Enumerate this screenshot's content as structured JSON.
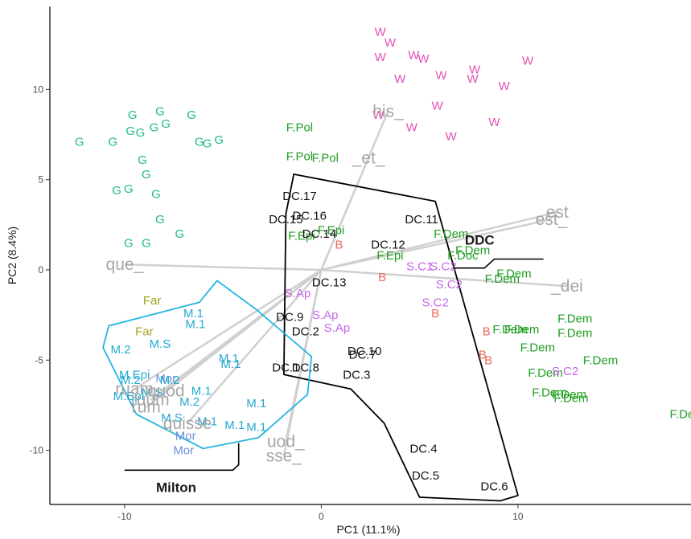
{
  "chart_data": {
    "type": "scatter",
    "xlabel": "PC1 (11.1%)",
    "ylabel": "PC2 (8.4%)",
    "xlim": [
      -13.8,
      18.8
    ],
    "ylim": [
      -13,
      14.6
    ],
    "xticks": [
      -10,
      0,
      10
    ],
    "yticks": [
      -10,
      -5,
      0,
      5,
      10
    ],
    "grid": false,
    "colors": {
      "G": "#1fb98e",
      "W": "#e64fb5",
      "Far": "#a3a31f",
      "M": "#23a9cf",
      "Mor": "#6b8fe0",
      "DC": "#111111",
      "F": "#1f9e1f",
      "B": "#ea6b5e",
      "S": "#c467e8",
      "var": "#a6a6a6",
      "hull_milton": "#23b5e0",
      "hull_ddc": "#000000"
    },
    "points": [
      {
        "label": "G",
        "x": -12.3,
        "y": 7.1,
        "group": "G"
      },
      {
        "label": "G",
        "x": -10.6,
        "y": 7.1,
        "group": "G"
      },
      {
        "label": "G",
        "x": -9.6,
        "y": 8.6,
        "group": "G"
      },
      {
        "label": "G",
        "x": -8.2,
        "y": 8.8,
        "group": "G"
      },
      {
        "label": "G",
        "x": -6.6,
        "y": 8.6,
        "group": "G"
      },
      {
        "label": "G",
        "x": -9.7,
        "y": 7.7,
        "group": "G"
      },
      {
        "label": "G",
        "x": -9.2,
        "y": 7.6,
        "group": "G"
      },
      {
        "label": "G",
        "x": -8.5,
        "y": 7.9,
        "group": "G"
      },
      {
        "label": "G",
        "x": -7.9,
        "y": 8.1,
        "group": "G"
      },
      {
        "label": "G",
        "x": -6.2,
        "y": 7.1,
        "group": "G"
      },
      {
        "label": "G",
        "x": -5.8,
        "y": 7.0,
        "group": "G"
      },
      {
        "label": "G",
        "x": -5.2,
        "y": 7.2,
        "group": "G"
      },
      {
        "label": "G",
        "x": -9.1,
        "y": 6.1,
        "group": "G"
      },
      {
        "label": "G",
        "x": -8.9,
        "y": 5.3,
        "group": "G"
      },
      {
        "label": "G",
        "x": -10.4,
        "y": 4.4,
        "group": "G"
      },
      {
        "label": "G",
        "x": -9.8,
        "y": 4.5,
        "group": "G"
      },
      {
        "label": "G",
        "x": -8.4,
        "y": 4.2,
        "group": "G"
      },
      {
        "label": "G",
        "x": -8.2,
        "y": 2.8,
        "group": "G"
      },
      {
        "label": "G",
        "x": -7.2,
        "y": 2.0,
        "group": "G"
      },
      {
        "label": "G",
        "x": -9.8,
        "y": 1.5,
        "group": "G"
      },
      {
        "label": "G",
        "x": -8.9,
        "y": 1.5,
        "group": "G"
      },
      {
        "label": "W",
        "x": 3.0,
        "y": 13.2,
        "group": "W"
      },
      {
        "label": "W",
        "x": 3.5,
        "y": 12.6,
        "group": "W"
      },
      {
        "label": "W",
        "x": 3.0,
        "y": 11.8,
        "group": "W"
      },
      {
        "label": "W",
        "x": 4.7,
        "y": 11.9,
        "group": "W"
      },
      {
        "label": "W",
        "x": 5.2,
        "y": 11.7,
        "group": "W"
      },
      {
        "label": "W",
        "x": 7.8,
        "y": 11.1,
        "group": "W"
      },
      {
        "label": "W",
        "x": 10.5,
        "y": 11.6,
        "group": "W"
      },
      {
        "label": "W",
        "x": 4.0,
        "y": 10.6,
        "group": "W"
      },
      {
        "label": "W",
        "x": 6.1,
        "y": 10.8,
        "group": "W"
      },
      {
        "label": "W",
        "x": 7.7,
        "y": 10.6,
        "group": "W"
      },
      {
        "label": "W",
        "x": 9.3,
        "y": 10.2,
        "group": "W"
      },
      {
        "label": "W",
        "x": 5.9,
        "y": 9.1,
        "group": "W"
      },
      {
        "label": "W",
        "x": 2.9,
        "y": 8.6,
        "group": "W"
      },
      {
        "label": "W",
        "x": 4.6,
        "y": 7.9,
        "group": "W"
      },
      {
        "label": "W",
        "x": 8.8,
        "y": 8.2,
        "group": "W"
      },
      {
        "label": "W",
        "x": 6.6,
        "y": 7.4,
        "group": "W"
      },
      {
        "label": "F.Pol",
        "x": -1.1,
        "y": 7.9,
        "group": "F"
      },
      {
        "label": "F.Pol",
        "x": -1.1,
        "y": 6.3,
        "group": "F"
      },
      {
        "label": "F.Pol",
        "x": 0.2,
        "y": 6.2,
        "group": "F"
      },
      {
        "label": "F.Epi",
        "x": -1.0,
        "y": 1.9,
        "group": "F"
      },
      {
        "label": "F.Epi",
        "x": 0.5,
        "y": 2.2,
        "group": "F"
      },
      {
        "label": "F.Epi",
        "x": 3.5,
        "y": 0.8,
        "group": "F"
      },
      {
        "label": "F.Dem",
        "x": 6.6,
        "y": 2.0,
        "group": "F"
      },
      {
        "label": "F.Dem",
        "x": 7.7,
        "y": 1.1,
        "group": "F"
      },
      {
        "label": "F.Doc",
        "x": 7.2,
        "y": 0.8,
        "group": "F"
      },
      {
        "label": "F.Dem",
        "x": 9.8,
        "y": -0.2,
        "group": "F"
      },
      {
        "label": "F.Dem",
        "x": 9.2,
        "y": -0.5,
        "group": "F"
      },
      {
        "label": "F.Dem",
        "x": 12.9,
        "y": -2.7,
        "group": "F"
      },
      {
        "label": "F.Dem",
        "x": 9.6,
        "y": -3.3,
        "group": "F"
      },
      {
        "label": "F.Dem",
        "x": 10.2,
        "y": -3.3,
        "group": "F"
      },
      {
        "label": "F.Dem",
        "x": 12.9,
        "y": -3.5,
        "group": "F"
      },
      {
        "label": "F.Dem",
        "x": 11.0,
        "y": -4.3,
        "group": "F"
      },
      {
        "label": "F.Dem",
        "x": 14.2,
        "y": -5.0,
        "group": "F"
      },
      {
        "label": "F.Dem",
        "x": 11.4,
        "y": -5.7,
        "group": "F"
      },
      {
        "label": "F.Dem",
        "x": 11.6,
        "y": -6.8,
        "group": "F"
      },
      {
        "label": "F.Dem",
        "x": 12.6,
        "y": -6.9,
        "group": "F"
      },
      {
        "label": "F.Dem",
        "x": 12.7,
        "y": -7.1,
        "group": "F"
      },
      {
        "label": "F.Dem",
        "x": 18.6,
        "y": -8.0,
        "group": "F"
      },
      {
        "label": "S.C1",
        "x": 5.0,
        "y": 0.2,
        "group": "S"
      },
      {
        "label": "S.C2",
        "x": 6.2,
        "y": 0.2,
        "group": "S"
      },
      {
        "label": "S.C2",
        "x": 6.5,
        "y": -0.8,
        "group": "S"
      },
      {
        "label": "S.C2",
        "x": 5.8,
        "y": -1.8,
        "group": "S"
      },
      {
        "label": "S.C2",
        "x": 12.4,
        "y": -5.6,
        "group": "S"
      },
      {
        "label": "S.Ap",
        "x": -1.2,
        "y": -1.3,
        "group": "S"
      },
      {
        "label": "S.Ap",
        "x": 0.2,
        "y": -2.5,
        "group": "S"
      },
      {
        "label": "S.Ap",
        "x": 0.8,
        "y": -3.2,
        "group": "S"
      },
      {
        "label": "B",
        "x": 0.9,
        "y": 1.4,
        "group": "B"
      },
      {
        "label": "B",
        "x": 3.1,
        "y": -0.4,
        "group": "B"
      },
      {
        "label": "B",
        "x": 5.8,
        "y": -2.4,
        "group": "B"
      },
      {
        "label": "B",
        "x": 8.4,
        "y": -3.4,
        "group": "B"
      },
      {
        "label": "B",
        "x": 8.2,
        "y": -4.7,
        "group": "B"
      },
      {
        "label": "B",
        "x": 8.5,
        "y": -5.0,
        "group": "B"
      },
      {
        "label": "DC.17",
        "x": -1.1,
        "y": 4.1,
        "group": "DC"
      },
      {
        "label": "DC.16",
        "x": -0.6,
        "y": 3.0,
        "group": "DC"
      },
      {
        "label": "DC.15",
        "x": -1.8,
        "y": 2.8,
        "group": "DC"
      },
      {
        "label": "DC.14",
        "x": -0.1,
        "y": 2.0,
        "group": "DC"
      },
      {
        "label": "DC.11",
        "x": 5.1,
        "y": 2.8,
        "group": "DC"
      },
      {
        "label": "DC.12",
        "x": 3.4,
        "y": 1.4,
        "group": "DC"
      },
      {
        "label": "DC.13",
        "x": 0.4,
        "y": -0.7,
        "group": "DC"
      },
      {
        "label": "DC.9",
        "x": -1.6,
        "y": -2.6,
        "group": "DC"
      },
      {
        "label": "DC.2",
        "x": -0.8,
        "y": -3.4,
        "group": "DC"
      },
      {
        "label": "DC.10",
        "x": 2.2,
        "y": -4.5,
        "group": "DC"
      },
      {
        "label": "DC.7",
        "x": 2.1,
        "y": -4.7,
        "group": "DC"
      },
      {
        "label": "DC.1",
        "x": -1.8,
        "y": -5.4,
        "group": "DC"
      },
      {
        "label": "DC.8",
        "x": -0.8,
        "y": -5.4,
        "group": "DC"
      },
      {
        "label": "DC.3",
        "x": 1.8,
        "y": -5.8,
        "group": "DC"
      },
      {
        "label": "DC.4",
        "x": 5.2,
        "y": -9.9,
        "group": "DC"
      },
      {
        "label": "DC.5",
        "x": 5.3,
        "y": -11.4,
        "group": "DC"
      },
      {
        "label": "DC.6",
        "x": 8.8,
        "y": -12.0,
        "group": "DC"
      },
      {
        "label": "Far",
        "x": -8.6,
        "y": -1.7,
        "group": "Far"
      },
      {
        "label": "Far",
        "x": -9.0,
        "y": -3.4,
        "group": "Far"
      },
      {
        "label": "M.1",
        "x": -6.5,
        "y": -2.4,
        "group": "M"
      },
      {
        "label": "M.1",
        "x": -6.4,
        "y": -3.0,
        "group": "M"
      },
      {
        "label": "M.S",
        "x": -8.2,
        "y": -4.1,
        "group": "M"
      },
      {
        "label": "M.2",
        "x": -10.2,
        "y": -4.4,
        "group": "M"
      },
      {
        "label": "M.1",
        "x": -4.7,
        "y": -4.9,
        "group": "M"
      },
      {
        "label": "M.1",
        "x": -4.6,
        "y": -5.2,
        "group": "M"
      },
      {
        "label": "M.Epi",
        "x": -9.5,
        "y": -5.8,
        "group": "M"
      },
      {
        "label": "M.2",
        "x": -9.7,
        "y": -6.1,
        "group": "M"
      },
      {
        "label": "Mor",
        "x": -7.9,
        "y": -6.0,
        "group": "Mor"
      },
      {
        "label": "M.2",
        "x": -7.7,
        "y": -6.1,
        "group": "M"
      },
      {
        "label": "M.1",
        "x": -6.1,
        "y": -6.7,
        "group": "M"
      },
      {
        "label": "M.Epi",
        "x": -9.8,
        "y": -7.0,
        "group": "M"
      },
      {
        "label": "M.S",
        "x": -8.6,
        "y": -6.8,
        "group": "M"
      },
      {
        "label": "M.2",
        "x": -6.7,
        "y": -7.3,
        "group": "M"
      },
      {
        "label": "M.1",
        "x": -3.3,
        "y": -7.4,
        "group": "M"
      },
      {
        "label": "M.S",
        "x": -7.6,
        "y": -8.2,
        "group": "M"
      },
      {
        "label": "M.1",
        "x": -5.8,
        "y": -8.4,
        "group": "M"
      },
      {
        "label": "M.1",
        "x": -4.4,
        "y": -8.6,
        "group": "M"
      },
      {
        "label": "M.1",
        "x": -3.3,
        "y": -8.7,
        "group": "M"
      },
      {
        "label": "Mor",
        "x": -6.9,
        "y": -9.2,
        "group": "Mor"
      },
      {
        "label": "Mor",
        "x": -7.0,
        "y": -10.0,
        "group": "Mor"
      }
    ],
    "variables": [
      {
        "label": "que_",
        "x": -10.0,
        "y": 0.3
      },
      {
        "label": "his_",
        "x": 3.4,
        "y": 8.8
      },
      {
        "label": "_et_",
        "x": 2.4,
        "y": 6.2
      },
      {
        "label": "est",
        "x": 12.0,
        "y": 3.2
      },
      {
        "label": "est_",
        "x": 11.7,
        "y": 2.8
      },
      {
        "label": "_dei",
        "x": 12.5,
        "y": -0.9
      },
      {
        "label": "uod_",
        "x": -1.8,
        "y": -9.5
      },
      {
        "label": "sse_",
        "x": -1.9,
        "y": -10.3
      },
      {
        "label": "ruam",
        "x": -9.5,
        "y": -6.6
      },
      {
        "label": "ruum",
        "x": -8.7,
        "y": -7.2
      },
      {
        "label": "quod",
        "x": -7.9,
        "y": -6.7
      },
      {
        "label": "rum",
        "x": -8.9,
        "y": -7.6
      },
      {
        "label": "quisse",
        "x": -6.8,
        "y": -8.5
      }
    ],
    "hulls": [
      {
        "name": "DDC",
        "points": [
          [
            -1.4,
            5.3
          ],
          [
            5.8,
            3.8
          ],
          [
            10.0,
            -12.5
          ],
          [
            9.1,
            -12.8
          ],
          [
            5.0,
            -12.6
          ],
          [
            3.2,
            -8.5
          ],
          [
            1.5,
            -6.6
          ],
          [
            -1.9,
            -5.8
          ],
          [
            -1.8,
            3.1
          ]
        ],
        "label_at": [
          7.3,
          1.4
        ],
        "leader": [
          [
            6.7,
            0.1
          ],
          [
            8.3,
            0.1
          ],
          [
            8.8,
            0.6
          ],
          [
            11.3,
            0.6
          ]
        ]
      },
      {
        "name": "Milton",
        "points": [
          [
            -5.3,
            -0.6
          ],
          [
            -3.3,
            -2.2
          ],
          [
            -0.5,
            -4.8
          ],
          [
            -0.7,
            -6.9
          ],
          [
            -3.2,
            -9.3
          ],
          [
            -6.0,
            -9.9
          ],
          [
            -9.4,
            -8.0
          ],
          [
            -11.1,
            -4.3
          ],
          [
            -10.8,
            -3.1
          ],
          [
            -6.2,
            -1.8
          ]
        ],
        "label_at": [
          -8.4,
          -12.3
        ],
        "leader": [
          [
            -10.0,
            -11.1
          ],
          [
            -4.5,
            -11.1
          ],
          [
            -4.2,
            -10.8
          ],
          [
            -4.2,
            -9.6
          ]
        ]
      }
    ]
  }
}
